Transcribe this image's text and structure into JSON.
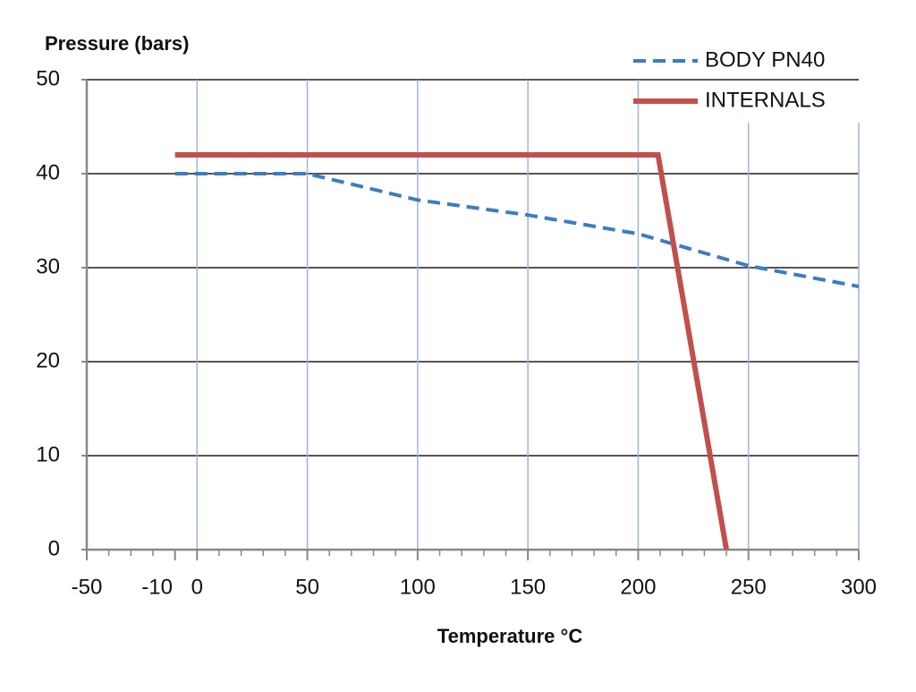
{
  "chart_data": {
    "type": "line",
    "y_label": "Pressure (bars)",
    "x_label": "Temperature °C",
    "xlim": [
      -50,
      300
    ],
    "xticks": [
      -50,
      -10,
      0,
      50,
      100,
      150,
      200,
      250,
      300
    ],
    "ylim": [
      0,
      50
    ],
    "yticks": [
      0,
      10,
      20,
      30,
      40,
      50
    ],
    "grid": true,
    "legend": "top-right",
    "series": [
      {
        "name": "BODY PN40",
        "color": "#3d7cc0",
        "dashed": true,
        "x": [
          -10,
          50,
          100,
          150,
          200,
          250,
          300
        ],
        "values": [
          40,
          40,
          37.2,
          35.6,
          33.6,
          30.2,
          28
        ]
      },
      {
        "name": "INTERNALS",
        "color": "#c0504d",
        "dashed": false,
        "x": [
          -10,
          209,
          240
        ],
        "values": [
          42,
          42,
          0
        ]
      }
    ]
  }
}
